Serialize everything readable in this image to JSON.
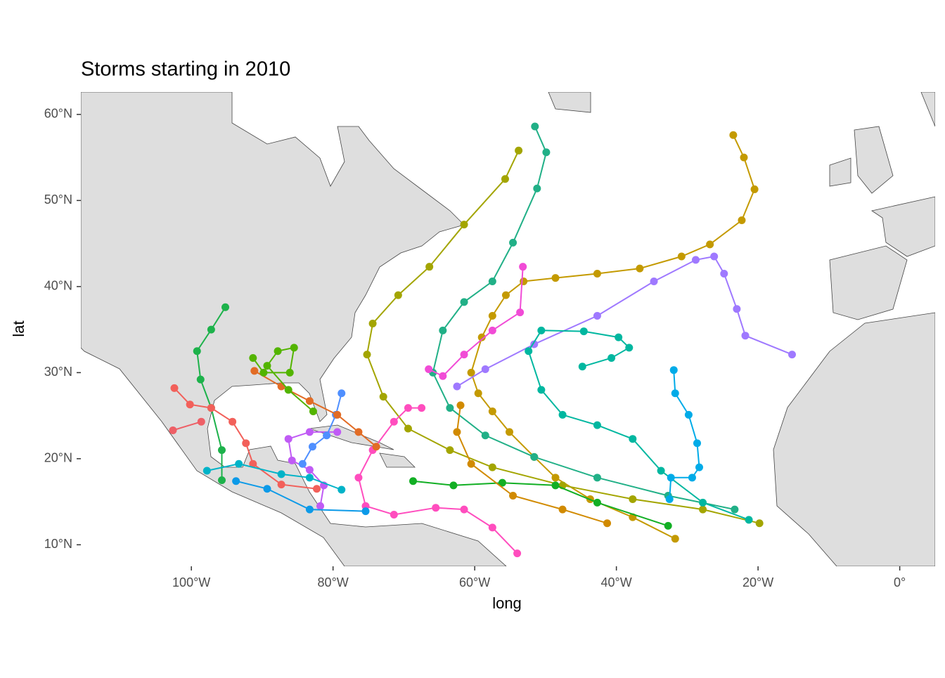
{
  "chart_data": {
    "type": "line",
    "title": "Storms starting in 2010",
    "x_label": "long",
    "y_label": "lat",
    "xlim": [
      -115.6,
      5.0
    ],
    "ylim": [
      7.5,
      62.6
    ],
    "xticks": [
      {
        "value": -100,
        "label": "100°W"
      },
      {
        "value": -80,
        "label": "80°W"
      },
      {
        "value": -60,
        "label": "60°W"
      },
      {
        "value": -40,
        "label": "40°W"
      },
      {
        "value": -20,
        "label": "20°W"
      },
      {
        "value": 0,
        "label": "0°"
      }
    ],
    "yticks": [
      {
        "value": 10,
        "label": "10°N"
      },
      {
        "value": 20,
        "label": "20°N"
      },
      {
        "value": 30,
        "label": "30°N"
      },
      {
        "value": 40,
        "label": "40°N"
      },
      {
        "value": 50,
        "label": "50°N"
      },
      {
        "value": 60,
        "label": "60°N"
      }
    ],
    "series": [
      {
        "color": "#C49A00",
        "x": [
          -31.7,
          -37.7,
          -43.7,
          -48.6,
          -51.6,
          -55.1,
          -57.5,
          -59.5,
          -60.5,
          -59.0,
          -57.5,
          -55.6,
          -53.1,
          -48.6,
          -42.7,
          -36.7,
          -30.8,
          -26.8,
          -22.3,
          -20.5,
          -22.0,
          -23.5
        ],
        "values": [
          10.7,
          13.2,
          15.3,
          17.8,
          20.2,
          23.1,
          25.5,
          27.6,
          30.0,
          34.1,
          36.6,
          39.0,
          40.6,
          41.0,
          41.5,
          42.1,
          43.5,
          44.9,
          47.7,
          51.3,
          55.0,
          57.6
        ]
      },
      {
        "color": "#A3A500",
        "x": [
          -19.8,
          -27.8,
          -37.7,
          -47.6,
          -57.5,
          -63.5,
          -69.4,
          -72.9,
          -75.2,
          -74.4,
          -70.8,
          -66.4,
          -61.5,
          -55.7,
          -53.8
        ],
        "values": [
          12.5,
          14.1,
          15.3,
          16.9,
          19.0,
          21.0,
          23.5,
          27.2,
          32.1,
          35.7,
          39.0,
          42.3,
          47.2,
          52.5,
          55.8
        ]
      },
      {
        "color": "#21B087",
        "x": [
          -23.3,
          -32.7,
          -42.7,
          -51.6,
          -58.5,
          -63.5,
          -65.9,
          -64.5,
          -61.5,
          -57.5,
          -54.6,
          -51.2,
          -49.9,
          -51.5
        ],
        "values": [
          14.1,
          15.7,
          17.8,
          20.2,
          22.7,
          25.9,
          30.0,
          34.9,
          38.2,
          40.6,
          45.1,
          51.4,
          55.6,
          58.6
        ]
      },
      {
        "color": "#9F79FF",
        "x": [
          -15.2,
          -21.8,
          -23.0,
          -24.8,
          -26.2,
          -28.8,
          -34.7,
          -42.7,
          -51.6,
          -58.5,
          -62.5
        ],
        "values": [
          32.1,
          34.3,
          37.4,
          41.5,
          43.5,
          43.1,
          40.6,
          36.6,
          33.3,
          30.4,
          28.4
        ]
      },
      {
        "color": "#00B7A0",
        "x": [
          -21.3,
          -27.8,
          -33.7,
          -37.7,
          -42.7,
          -47.6,
          -50.6,
          -52.4,
          -50.6,
          -44.6,
          -39.7,
          -38.2,
          -40.7,
          -44.8
        ],
        "values": [
          12.9,
          14.9,
          18.6,
          22.3,
          23.9,
          25.1,
          28.0,
          32.5,
          34.9,
          34.8,
          34.1,
          32.9,
          31.7,
          30.7
        ]
      },
      {
        "color": "#00ABE8",
        "x": [
          -31.9,
          -31.7,
          -29.8,
          -28.6,
          -28.3,
          -29.3,
          -32.3,
          -32.5
        ],
        "values": [
          30.3,
          27.6,
          25.1,
          21.8,
          19.0,
          17.8,
          17.8,
          15.3
        ]
      },
      {
        "color": "#FF4DBE",
        "x": [
          -54.0,
          -57.5,
          -61.5,
          -65.5,
          -71.4,
          -75.4,
          -76.4,
          -74.4,
          -71.4,
          -69.4,
          -67.5
        ],
        "values": [
          9.0,
          12.0,
          14.1,
          14.3,
          13.5,
          14.5,
          17.8,
          21.0,
          24.3,
          25.9,
          25.9
        ]
      },
      {
        "color": "#F14BD6",
        "x": [
          -53.2,
          -53.6,
          -57.5,
          -61.5,
          -64.5,
          -66.5
        ],
        "values": [
          42.3,
          37.0,
          34.9,
          32.1,
          29.6,
          30.4
        ]
      },
      {
        "color": "#C05BF5",
        "x": [
          -79.4,
          -83.3,
          -86.3,
          -85.8,
          -83.3,
          -81.3,
          -81.8
        ],
        "values": [
          23.1,
          23.1,
          22.3,
          19.8,
          18.7,
          16.9,
          14.5
        ]
      },
      {
        "color": "#4F8FFF",
        "x": [
          -78.8,
          -79.6,
          -80.9,
          -82.9,
          -84.3
        ],
        "values": [
          27.6,
          25.1,
          22.7,
          21.4,
          19.4
        ]
      },
      {
        "color": "#E26C25",
        "x": [
          -91.1,
          -87.3,
          -83.3,
          -79.4,
          -76.4,
          -73.9
        ],
        "values": [
          30.2,
          28.4,
          26.7,
          25.1,
          23.1,
          21.4
        ]
      },
      {
        "color": "#1DB24B",
        "x": [
          -95.2,
          -97.2,
          -99.2,
          -98.7,
          -97.2,
          -95.7,
          -95.7
        ],
        "values": [
          37.6,
          35.0,
          32.5,
          29.2,
          25.9,
          21.0,
          17.5
        ]
      },
      {
        "color": "#53B400",
        "x": [
          -82.8,
          -86.3,
          -89.3,
          -87.8,
          -85.5,
          -86.1,
          -89.8,
          -91.3
        ],
        "values": [
          25.5,
          28.0,
          30.8,
          32.5,
          32.9,
          30.0,
          30.0,
          31.7
        ]
      },
      {
        "color": "#F2605A",
        "x": [
          -102.4,
          -100.2,
          -97.2,
          -94.2,
          -92.3,
          -91.3,
          -87.3,
          -82.3
        ],
        "values": [
          28.2,
          26.3,
          25.9,
          24.3,
          21.8,
          19.4,
          17.0,
          16.5
        ]
      },
      {
        "color": "#EE5F66",
        "x": [
          -102.6,
          -98.6
        ],
        "values": [
          23.3,
          24.3
        ]
      },
      {
        "color": "#00B3C8",
        "x": [
          -97.8,
          -93.3,
          -87.3,
          -83.3,
          -78.8
        ],
        "values": [
          18.6,
          19.4,
          18.2,
          17.8,
          16.4
        ]
      },
      {
        "color": "#0C9AE8",
        "x": [
          -93.7,
          -89.3,
          -83.3,
          -75.4
        ],
        "values": [
          17.4,
          16.5,
          14.1,
          13.9
        ]
      },
      {
        "color": "#12AF24",
        "x": [
          -68.7,
          -63.0,
          -56.1,
          -48.6,
          -42.7,
          -32.7
        ],
        "values": [
          17.4,
          16.9,
          17.2,
          16.9,
          14.9,
          12.2
        ]
      },
      {
        "color": "#D18A00",
        "x": [
          -41.3,
          -47.6,
          -54.6,
          -60.5,
          -62.5,
          -62.0
        ],
        "values": [
          12.5,
          14.1,
          15.7,
          19.4,
          23.1,
          26.2
        ]
      }
    ]
  }
}
